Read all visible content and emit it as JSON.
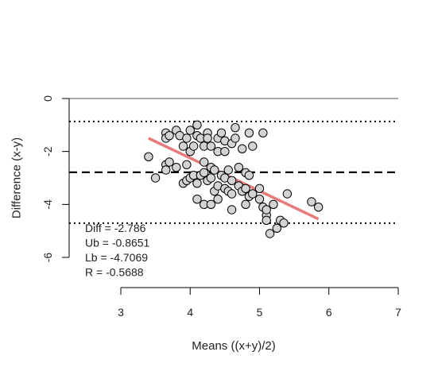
{
  "chart_data": {
    "type": "scatter",
    "title": "",
    "xlabel": "Means ((x+y)/2)",
    "ylabel": "Difference (x-y)",
    "xlim": [
      3,
      7
    ],
    "ylim": [
      -6,
      0
    ],
    "x_ticks": [
      "3",
      "4",
      "5",
      "6",
      "7"
    ],
    "y_ticks": [
      "0",
      "-2",
      "-4",
      "-6"
    ],
    "grid": false,
    "reference_lines": {
      "zero": 0,
      "mean_diff": -2.786,
      "upper_limit": -0.8651,
      "lower_limit": -4.7069
    },
    "regression_line": {
      "x": [
        3.4,
        5.85
      ],
      "y": [
        -1.5,
        -4.55
      ],
      "color": "#e87a7a"
    },
    "annotations": [
      "Diff = -2.786",
      "Ub = -0.8651",
      "Lb = -4.7069",
      "R = -0.5688"
    ],
    "point_color": "#d3d3d3",
    "points": [
      [
        3.4,
        -2.2
      ],
      [
        3.5,
        -3.0
      ],
      [
        3.65,
        -2.5
      ],
      [
        3.65,
        -2.7
      ],
      [
        3.65,
        -1.3
      ],
      [
        3.65,
        -1.5
      ],
      [
        3.7,
        -1.4
      ],
      [
        3.7,
        -2.4
      ],
      [
        3.8,
        -2.6
      ],
      [
        3.8,
        -1.2
      ],
      [
        3.85,
        -1.4
      ],
      [
        3.9,
        -1.8
      ],
      [
        3.9,
        -3.2
      ],
      [
        3.95,
        -3.1
      ],
      [
        3.95,
        -2.5
      ],
      [
        3.95,
        -1.5
      ],
      [
        4.0,
        -3.0
      ],
      [
        4.0,
        -1.2
      ],
      [
        4.0,
        -2.0
      ],
      [
        4.05,
        -1.8
      ],
      [
        4.05,
        -2.9
      ],
      [
        4.1,
        -1.0
      ],
      [
        4.1,
        -1.4
      ],
      [
        4.1,
        -3.2
      ],
      [
        4.1,
        -3.8
      ],
      [
        4.15,
        -1.5
      ],
      [
        4.15,
        -2.9
      ],
      [
        4.2,
        -2.4
      ],
      [
        4.2,
        -1.8
      ],
      [
        4.2,
        -2.8
      ],
      [
        4.2,
        -4.0
      ],
      [
        4.25,
        -1.3
      ],
      [
        4.25,
        -1.5
      ],
      [
        4.25,
        -3.1
      ],
      [
        4.3,
        -1.8
      ],
      [
        4.3,
        -2.6
      ],
      [
        4.3,
        -3.0
      ],
      [
        4.3,
        -4.0
      ],
      [
        4.35,
        -2.7
      ],
      [
        4.35,
        -3.5
      ],
      [
        4.4,
        -1.5
      ],
      [
        4.4,
        -2.0
      ],
      [
        4.4,
        -3.3
      ],
      [
        4.4,
        -3.8
      ],
      [
        4.45,
        -1.3
      ],
      [
        4.45,
        -2.9
      ],
      [
        4.5,
        -1.6
      ],
      [
        4.5,
        -2.0
      ],
      [
        4.5,
        -3.0
      ],
      [
        4.5,
        -3.4
      ],
      [
        4.55,
        -2.7
      ],
      [
        4.55,
        -3.5
      ],
      [
        4.6,
        -1.7
      ],
      [
        4.6,
        -3.1
      ],
      [
        4.6,
        -3.6
      ],
      [
        4.6,
        -4.2
      ],
      [
        4.65,
        -1.1
      ],
      [
        4.65,
        -1.5
      ],
      [
        4.7,
        -2.6
      ],
      [
        4.7,
        -3.3
      ],
      [
        4.75,
        -1.9
      ],
      [
        4.75,
        -3.5
      ],
      [
        4.8,
        -2.8
      ],
      [
        4.8,
        -3.4
      ],
      [
        4.8,
        -4.0
      ],
      [
        4.85,
        -1.3
      ],
      [
        4.85,
        -2.9
      ],
      [
        4.85,
        -3.7
      ],
      [
        4.9,
        -1.8
      ],
      [
        4.9,
        -3.6
      ],
      [
        5.0,
        -3.4
      ],
      [
        5.0,
        -3.8
      ],
      [
        5.05,
        -1.3
      ],
      [
        5.05,
        -4.1
      ],
      [
        5.1,
        -4.4
      ],
      [
        5.1,
        -4.6
      ],
      [
        5.1,
        -4.2
      ],
      [
        5.15,
        -5.1
      ],
      [
        5.2,
        -4.0
      ],
      [
        5.25,
        -4.9
      ],
      [
        5.3,
        -4.6
      ],
      [
        5.35,
        -4.7
      ],
      [
        5.4,
        -3.6
      ],
      [
        5.75,
        -3.9
      ],
      [
        5.85,
        -4.1
      ]
    ]
  }
}
